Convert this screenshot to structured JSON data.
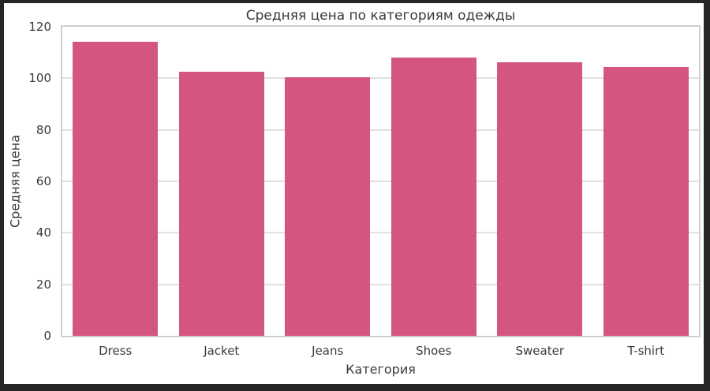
{
  "frame": {
    "background": "#262626",
    "figure_background": "#ffffff"
  },
  "chart_data": {
    "type": "bar",
    "title": "Средняя цена по категориям одежды",
    "xlabel": "Категория",
    "ylabel": "Средняя цена",
    "categories": [
      "Dress",
      "Jacket",
      "Jeans",
      "Shoes",
      "Sweater",
      "T-shirt"
    ],
    "values": [
      114.1,
      102.5,
      100.4,
      108.2,
      106.3,
      104.4
    ],
    "ylim": [
      0,
      120
    ],
    "yticks": [
      0,
      20,
      40,
      60,
      80,
      100,
      120
    ],
    "bar_width_fraction": 0.8,
    "grid": true,
    "legend_position": "none",
    "bar_color": "#d4567e",
    "grid_color": "#e0e0e0",
    "spine_color": "#cfcfcf",
    "text_color": "#3a3a3a"
  }
}
